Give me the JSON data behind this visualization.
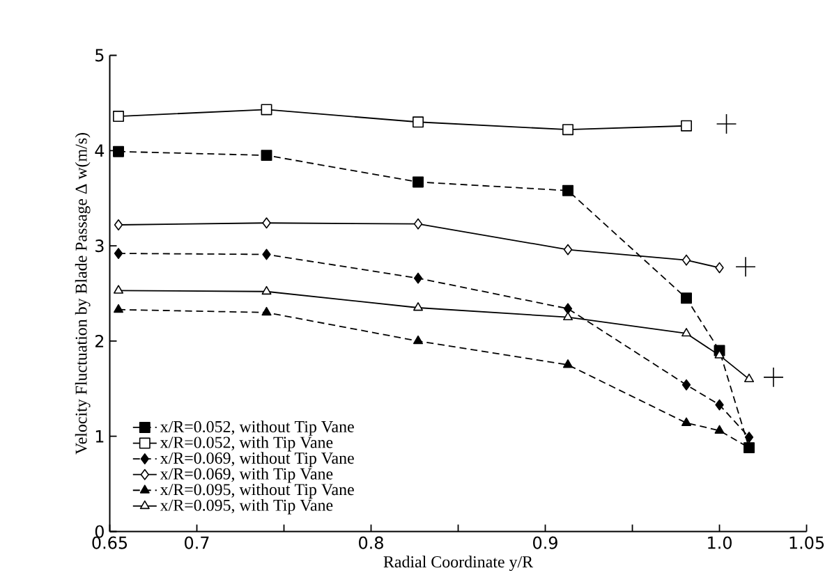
{
  "chart_data": {
    "type": "line",
    "xlabel": "Radial Coordinate y/R",
    "ylabel": "Velocity Fluctuation by Blade Passage  Δ w(m/s)",
    "xlim": [
      0.65,
      1.05
    ],
    "ylim": [
      0,
      5
    ],
    "xticks": [
      0.65,
      0.7,
      {
        "value": 0.75,
        "label": null
      },
      0.8,
      {
        "value": 0.85,
        "label": null
      },
      0.9,
      {
        "value": 0.95,
        "label": null
      },
      {
        "value": 1.0,
        "label": "1.0"
      },
      1.05
    ],
    "yticks": [
      0,
      1,
      2,
      3,
      4,
      5
    ],
    "grid": false,
    "legend": "bottom left",
    "series": [
      {
        "name": "x/R=0.052, without Tip Vane",
        "color": "#000000",
        "marker": "square",
        "line_style": "dashed",
        "x": [
          0.655,
          0.74,
          0.827,
          0.913,
          0.981,
          1.0,
          1.017
        ],
        "values": [
          3.99,
          3.95,
          3.67,
          3.58,
          2.45,
          1.9,
          0.88
        ]
      },
      {
        "name": "x/R=0.052, with Tip Vane",
        "color": "#000000",
        "marker": "square",
        "line_style": "solid",
        "x": [
          0.655,
          0.74,
          0.827,
          0.913,
          0.981
        ],
        "values": [
          4.36,
          4.43,
          4.3,
          4.22,
          4.26
        ]
      },
      {
        "name": "x/R=0.069, without Tip Vane",
        "color": "#000000",
        "marker": "diamond",
        "line_style": "dashed",
        "x": [
          0.655,
          0.74,
          0.827,
          0.913,
          0.981,
          1.0,
          1.017
        ],
        "values": [
          2.92,
          2.91,
          2.66,
          2.34,
          1.54,
          1.33,
          0.99
        ]
      },
      {
        "name": "x/R=0.069, with Tip Vane",
        "color": "#000000",
        "marker": "diamond",
        "line_style": "solid",
        "x": [
          0.655,
          0.74,
          0.827,
          0.913,
          0.981,
          1.0
        ],
        "values": [
          3.22,
          3.24,
          3.23,
          2.96,
          2.85,
          2.77
        ]
      },
      {
        "name": "x/R=0.095, without Tip Vane",
        "color": "#000000",
        "marker": "triangle",
        "line_style": "dashed",
        "x": [
          0.655,
          0.74,
          0.827,
          0.913,
          0.981,
          1.0,
          1.017
        ],
        "values": [
          2.33,
          2.3,
          2.0,
          1.75,
          1.14,
          1.06,
          0.88
        ]
      },
      {
        "name": "x/R=0.095, with Tip Vane",
        "color": "#000000",
        "marker": "triangle",
        "line_style": "solid",
        "x": [
          0.655,
          0.74,
          0.827,
          0.913,
          0.981,
          1.0,
          1.017
        ],
        "values": [
          2.53,
          2.52,
          2.35,
          2.25,
          2.08,
          1.85,
          1.6
        ]
      },
      {
        "type": "scatter",
        "color": "#000000",
        "marker": "cross",
        "x": [
          1.004,
          1.015,
          1.031
        ],
        "values": [
          4.28,
          2.78,
          1.62
        ]
      }
    ]
  }
}
